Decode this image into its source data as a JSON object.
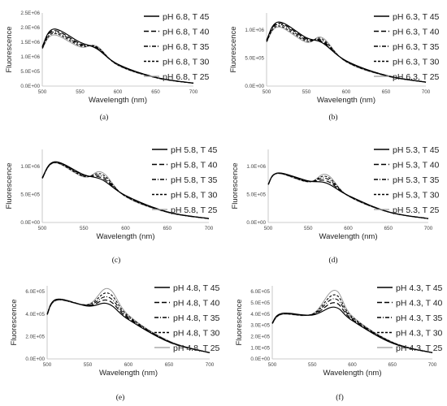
{
  "chart_data": [
    {
      "type": "line",
      "panel_label": "(a)",
      "xlabel": "Wavelength (nm)",
      "ylabel": "Fluorescence",
      "xlim": [
        500,
        700
      ],
      "xticks": [
        "500",
        "550",
        "600",
        "650",
        "700"
      ],
      "ylim": [
        0,
        2500000
      ],
      "yticks": [
        "0.0E+00",
        "5.0E+05",
        "1.0E+06",
        "1.5E+06",
        "2.0E+06",
        "2.5E+06"
      ],
      "grid": false,
      "legend_position": "top-right",
      "x": [
        500,
        515,
        550,
        572,
        600,
        650,
        700
      ],
      "series": [
        {
          "name": "pH 6.8, T 45",
          "dash": "solid",
          "values": [
            1350000,
            1950000,
            1500000,
            1280000,
            750000,
            300000,
            100000
          ]
        },
        {
          "name": "pH 6.8, T 40",
          "dash": "longdash",
          "values": [
            1330000,
            1900000,
            1450000,
            1300000,
            740000,
            300000,
            100000
          ]
        },
        {
          "name": "pH 6.8, T 35",
          "dash": "dashdot",
          "values": [
            1310000,
            1850000,
            1420000,
            1320000,
            730000,
            290000,
            100000
          ]
        },
        {
          "name": "pH 6.8, T 30",
          "dash": "shortdash",
          "values": [
            1290000,
            1800000,
            1380000,
            1340000,
            720000,
            290000,
            95000
          ]
        },
        {
          "name": "pH 6.8, T 25",
          "dash": "lightgray",
          "values": [
            1270000,
            1750000,
            1340000,
            1370000,
            710000,
            285000,
            95000
          ]
        }
      ]
    },
    {
      "type": "line",
      "panel_label": "(b)",
      "xlabel": "Wavelength (nm)",
      "ylabel": "Fluorescence",
      "xlim": [
        500,
        700
      ],
      "xticks": [
        "500",
        "550",
        "600",
        "650",
        "700"
      ],
      "ylim": [
        0,
        1300000
      ],
      "yticks": [
        "0.0E+00",
        "5.0E+05",
        "1.0E+06"
      ],
      "grid": false,
      "legend_position": "top-right",
      "x": [
        500,
        515,
        550,
        570,
        600,
        650,
        700
      ],
      "series": [
        {
          "name": "pH 6.3, T 45",
          "dash": "solid",
          "values": [
            820000,
            1140000,
            860000,
            770000,
            450000,
            190000,
            70000
          ]
        },
        {
          "name": "pH 6.3, T 40",
          "dash": "longdash",
          "values": [
            810000,
            1120000,
            840000,
            790000,
            445000,
            190000,
            70000
          ]
        },
        {
          "name": "pH 6.3, T 35",
          "dash": "dashdot",
          "values": [
            800000,
            1100000,
            820000,
            810000,
            440000,
            185000,
            70000
          ]
        },
        {
          "name": "pH 6.3, T 30",
          "dash": "shortdash",
          "values": [
            790000,
            1070000,
            800000,
            835000,
            435000,
            185000,
            68000
          ]
        },
        {
          "name": "pH 6.3, T 25",
          "dash": "lightgray",
          "values": [
            780000,
            1050000,
            780000,
            860000,
            430000,
            180000,
            68000
          ]
        }
      ]
    },
    {
      "type": "line",
      "panel_label": "(c)",
      "xlabel": "Wavelength (nm)",
      "ylabel": "Fluorescence",
      "xlim": [
        500,
        700
      ],
      "xticks": [
        "500",
        "550",
        "600",
        "650",
        "700"
      ],
      "ylim": [
        0,
        1300000
      ],
      "yticks": [
        "0.0E+00",
        "5.0E+05",
        "1.0E+06"
      ],
      "grid": false,
      "legend_position": "top-right",
      "x": [
        500,
        515,
        550,
        572,
        600,
        650,
        700
      ],
      "series": [
        {
          "name": "pH 5.8, T 45",
          "dash": "solid",
          "values": [
            800000,
            1080000,
            850000,
            760000,
            480000,
            190000,
            70000
          ]
        },
        {
          "name": "pH 5.8, T 40",
          "dash": "longdash",
          "values": [
            795000,
            1075000,
            840000,
            790000,
            475000,
            190000,
            70000
          ]
        },
        {
          "name": "pH 5.8, T 35",
          "dash": "dashdot",
          "values": [
            790000,
            1070000,
            830000,
            820000,
            470000,
            185000,
            68000
          ]
        },
        {
          "name": "pH 5.8, T 30",
          "dash": "shortdash",
          "values": [
            785000,
            1065000,
            820000,
            855000,
            465000,
            185000,
            68000
          ]
        },
        {
          "name": "pH 5.8, T 25",
          "dash": "lightgray",
          "values": [
            780000,
            1060000,
            810000,
            890000,
            460000,
            180000,
            66000
          ]
        }
      ]
    },
    {
      "type": "line",
      "panel_label": "(d)",
      "xlabel": "Wavelength (nm)",
      "ylabel": "Fluorescence",
      "xlim": [
        500,
        700
      ],
      "xticks": [
        "500",
        "550",
        "600",
        "650",
        "700"
      ],
      "ylim": [
        0,
        1300000
      ],
      "yticks": [
        "0.0E+00",
        "5.0E+05",
        "1.0E+06"
      ],
      "grid": false,
      "legend_position": "top-right",
      "x": [
        500,
        512,
        550,
        573,
        600,
        650,
        700
      ],
      "series": [
        {
          "name": "pH 5.3, T 45",
          "dash": "solid",
          "values": [
            680000,
            880000,
            740000,
            700000,
            480000,
            190000,
            70000
          ]
        },
        {
          "name": "pH 5.3, T 40",
          "dash": "longdash",
          "values": [
            680000,
            880000,
            735000,
            740000,
            480000,
            190000,
            70000
          ]
        },
        {
          "name": "pH 5.3, T 35",
          "dash": "dashdot",
          "values": [
            675000,
            875000,
            730000,
            780000,
            475000,
            188000,
            68000
          ]
        },
        {
          "name": "pH 5.3, T 30",
          "dash": "shortdash",
          "values": [
            675000,
            875000,
            725000,
            815000,
            475000,
            188000,
            68000
          ]
        },
        {
          "name": "pH 5.3, T 25",
          "dash": "lightgray",
          "values": [
            670000,
            870000,
            720000,
            850000,
            470000,
            185000,
            66000
          ]
        }
      ]
    },
    {
      "type": "line",
      "panel_label": "(e)",
      "xlabel": "Wavelength (nm)",
      "ylabel": "Fluorescence",
      "xlim": [
        500,
        700
      ],
      "xticks": [
        "500",
        "550",
        "600",
        "650",
        "700"
      ],
      "ylim": [
        0,
        650000
      ],
      "yticks": [
        "0.0E+00",
        "2.0E+05",
        "4.0E+05",
        "6.0E+05"
      ],
      "grid": false,
      "legend_position": "top-right",
      "x": [
        500,
        512,
        550,
        575,
        600,
        650,
        700
      ],
      "series": [
        {
          "name": "pH 4.8, T 45",
          "dash": "solid",
          "values": [
            400000,
            530000,
            470000,
            490000,
            350000,
            150000,
            55000
          ]
        },
        {
          "name": "pH 4.8, T 40",
          "dash": "longdash",
          "values": [
            400000,
            530000,
            475000,
            520000,
            360000,
            150000,
            55000
          ]
        },
        {
          "name": "pH 4.8, T 35",
          "dash": "dashdot",
          "values": [
            395000,
            525000,
            478000,
            550000,
            370000,
            155000,
            55000
          ]
        },
        {
          "name": "pH 4.8, T 30",
          "dash": "shortdash",
          "values": [
            395000,
            525000,
            482000,
            585000,
            380000,
            155000,
            55000
          ]
        },
        {
          "name": "pH 4.8, T 25",
          "dash": "lightgray",
          "values": [
            390000,
            520000,
            485000,
            625000,
            390000,
            160000,
            55000
          ]
        }
      ]
    },
    {
      "type": "line",
      "panel_label": "(f)",
      "xlabel": "Wavelength (nm)",
      "ylabel": "Fluorescence",
      "xlim": [
        500,
        700
      ],
      "xticks": [
        "500",
        "550",
        "600",
        "650",
        "700"
      ],
      "ylim": [
        0,
        650000
      ],
      "yticks": [
        "0.0E+00",
        "1.0E+05",
        "2.0E+05",
        "3.0E+05",
        "4.0E+05",
        "5.0E+05",
        "6.0E+05"
      ],
      "grid": false,
      "legend_position": "top-right",
      "x": [
        500,
        512,
        550,
        578,
        600,
        650,
        700
      ],
      "series": [
        {
          "name": "pH 4.3, T 45",
          "dash": "solid",
          "values": [
            320000,
            405000,
            390000,
            460000,
            340000,
            140000,
            55000
          ]
        },
        {
          "name": "pH 4.3, T 40",
          "dash": "longdash",
          "values": [
            318000,
            403000,
            392000,
            500000,
            350000,
            142000,
            55000
          ]
        },
        {
          "name": "pH 4.3, T 35",
          "dash": "dashdot",
          "values": [
            316000,
            400000,
            395000,
            535000,
            360000,
            145000,
            55000
          ]
        },
        {
          "name": "pH 4.3, T 30",
          "dash": "shortdash",
          "values": [
            314000,
            398000,
            398000,
            570000,
            370000,
            148000,
            55000
          ]
        },
        {
          "name": "pH 4.3, T 25",
          "dash": "lightgray",
          "values": [
            312000,
            395000,
            400000,
            610000,
            380000,
            150000,
            55000
          ]
        }
      ]
    }
  ]
}
